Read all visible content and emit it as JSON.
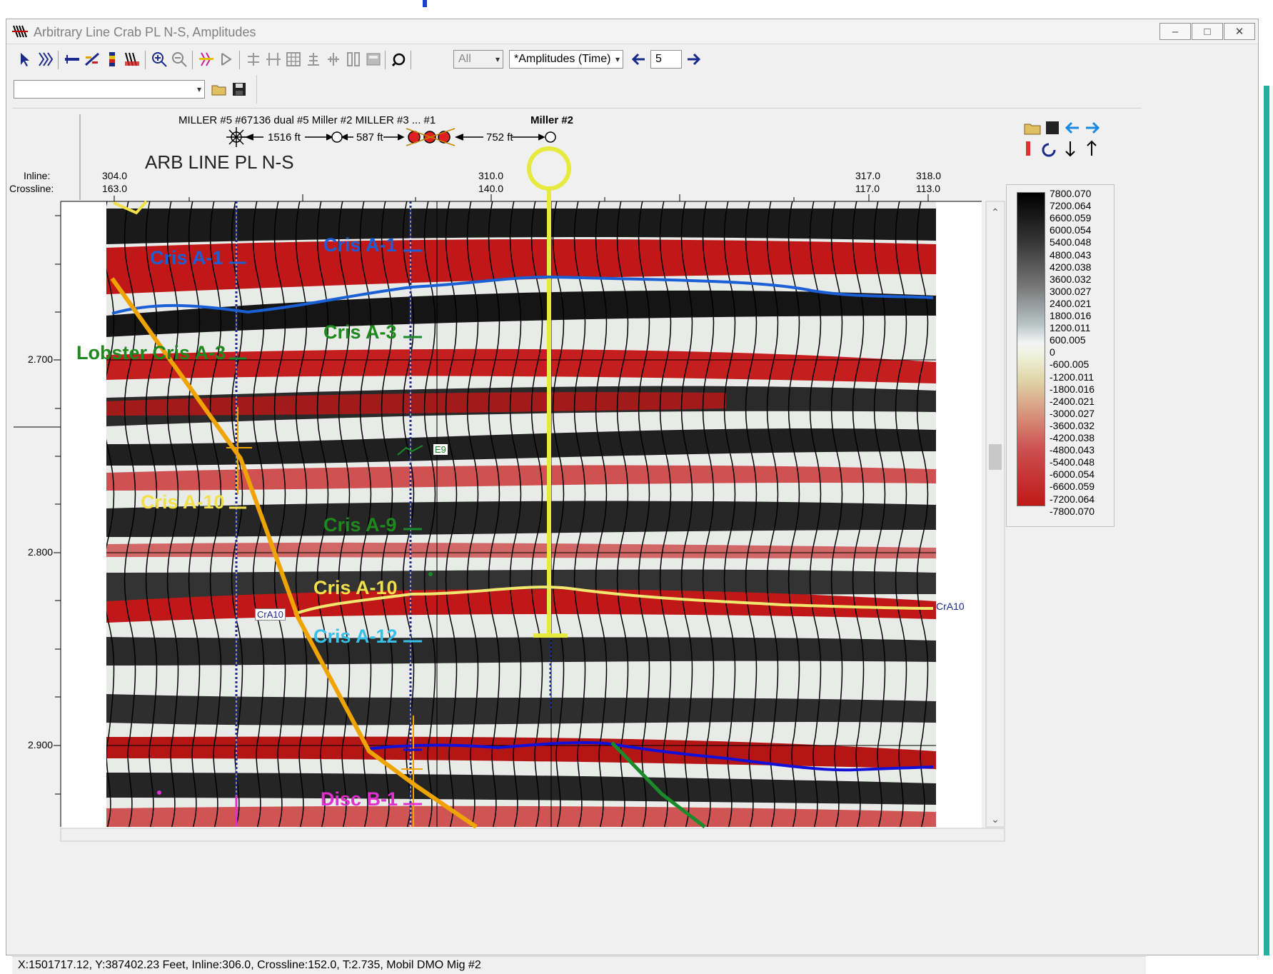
{
  "window": {
    "title": "Arbitrary Line Crab PL N-S, Amplitudes",
    "buttons": [
      "–",
      "□",
      "✕"
    ]
  },
  "toolbar": {
    "filter_value": "All",
    "attribute_value": "*Amplitudes (Time)",
    "step_value": "5"
  },
  "toolbar2": {
    "dropdown_value": ""
  },
  "header": {
    "well_names": "MILLER #5  #67136 dual #5  Miller #2  MILLER #3 ... #1",
    "well_name_bold": "Miller #2",
    "distances": [
      "1516 ft",
      "587 ft",
      "752 ft"
    ],
    "line_title": "ARB LINE PL N-S",
    "inline_label": "Inline:",
    "crossline_label": "Crossline:",
    "ticks": [
      {
        "inline": "304.0",
        "crossline": "163.0"
      },
      {
        "inline": "310.0",
        "crossline": "140.0"
      },
      {
        "inline": "317.0",
        "crossline": "117.0"
      },
      {
        "inline": "318.0",
        "crossline": "113.0"
      }
    ]
  },
  "time_axis": {
    "labels": [
      "2.700",
      "2.800",
      "2.900"
    ]
  },
  "horizons": {
    "cris_a1_left": "Cris A-1",
    "cris_a1_right": "Cris A-1",
    "cris_a3": "Cris A-3",
    "lobster_cris_a3": "Lobster Cris A-3",
    "e9": "E9",
    "cris_a10_left": "Cris A-10",
    "cris_a9": "Cris A-9",
    "cris_a10_mid": "Cris A-10",
    "cris_a12": "Cris A-12",
    "disc_b1": "Disc B-1",
    "cra10_left": "CrA10",
    "cra10_right": "CrA10"
  },
  "colorbar": {
    "labels": [
      "7800.070",
      "7200.064",
      "6600.059",
      "6000.054",
      "5400.048",
      "4800.043",
      "4200.038",
      "3600.032",
      "3000.027",
      "2400.021",
      "1800.016",
      "1200.011",
      "600.005",
      "0",
      "-600.005",
      "-1200.011",
      "-1800.016",
      "-2400.021",
      "-3000.027",
      "-3600.032",
      "-4200.038",
      "-4800.043",
      "-5400.048",
      "-6000.054",
      "-6600.059",
      "-7200.064",
      "-7800.070"
    ]
  },
  "status_bar": {
    "text": "X:1501717.12,  Y:387402.23 Feet,   Inline:306.0,   Crossline:152.0,   T:2.735,   Mobil DMO Mig #2"
  },
  "colors": {
    "accent_blue": "#1a5fd6",
    "horizon_yellow": "#f2e04a",
    "fault_orange": "#f0a400",
    "green_label": "#1e8a1e",
    "seismic_red": "#c01818"
  }
}
